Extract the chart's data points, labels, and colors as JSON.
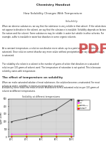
{
  "title": "Solubility at different temperatures",
  "xlabel": "Temperature",
  "ylabel": "Weight of substance\n(g per 100ml)",
  "temperatures": [
    "20°C",
    "40°C",
    "60°C",
    "80°C",
    "100°C"
  ],
  "temp_x": [
    0,
    1,
    2,
    3,
    4
  ],
  "sugar": [
    200,
    240,
    290,
    360,
    490
  ],
  "salt": [
    35,
    36,
    37,
    38,
    39
  ],
  "sodium": [
    9,
    10,
    9,
    8,
    7
  ],
  "potassium": [
    5,
    5,
    5,
    5,
    5
  ],
  "ylim": [
    0,
    500
  ],
  "yticks": [
    0,
    100,
    200,
    300,
    400,
    500
  ],
  "legend_labels": [
    "Sugar",
    "Salt",
    "Sodium\nbicarbonate",
    "Potassium\nchloride"
  ],
  "line_colors": [
    "#444444",
    "#ff44ff",
    "#dddd00",
    "#ff2222"
  ],
  "bg_color": "#f5f5f5",
  "plot_bg": "#d8d8d8",
  "page_bg": "#ffffff",
  "header_bg": "#e8c090",
  "sub_heading": "Chemistry Handout",
  "heading": "How Solubility Changes With Temperature",
  "heading2": "Solubility",
  "effect_heading": "The effect of temperature on solubility",
  "pdf_color": "#cc4444"
}
